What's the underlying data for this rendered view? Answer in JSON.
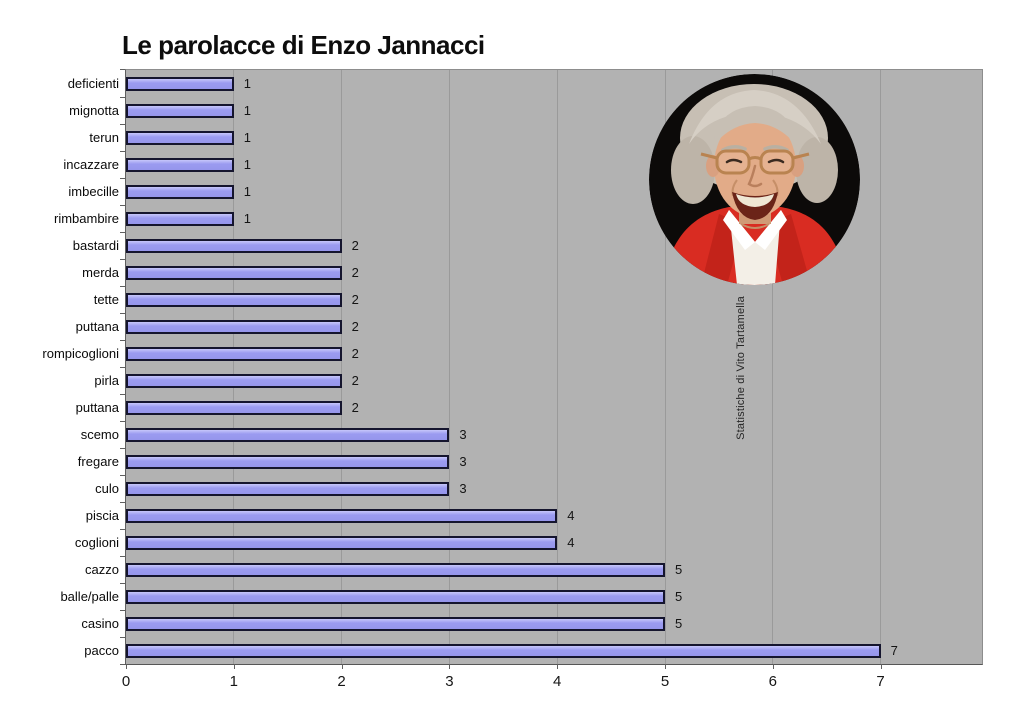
{
  "title": "Le parolacce di Enzo Jannacci",
  "watermark": "Statistiche di Vito Tartamella",
  "photo": {
    "alt": "enzo-jannacci-portrait",
    "background": "#0c0a09",
    "hair": "#c7bfb4",
    "skin": "#e2ab88",
    "jacket": "#d92c22",
    "shirt": "#f3efe7"
  },
  "colors": {
    "plot_background": "#b2b2b2",
    "gridline": "#9a9a9a",
    "bar_fill": "#9b9bf0",
    "bar_border": "#15152e",
    "axis": "#5f5f5f"
  },
  "chart_data": {
    "type": "bar",
    "orientation": "horizontal",
    "title": "Le parolacce di Enzo Jannacci",
    "xlabel": "",
    "ylabel": "",
    "grid": true,
    "legend": false,
    "xlim": [
      0,
      8
    ],
    "x_ticks": [
      0,
      1,
      2,
      3,
      4,
      5,
      6,
      7
    ],
    "value_labels_shown": true,
    "categories": [
      "deficienti",
      "mignotta",
      "terun",
      "incazzare",
      "imbecille",
      "rimbambire",
      "bastardi",
      "merda",
      "tette",
      "puttana",
      "rompicoglioni",
      "pirla",
      "puttana",
      "scemo",
      "fregare",
      "culo",
      "piscia",
      "coglioni",
      "cazzo",
      "balle/palle",
      "casino",
      "pacco"
    ],
    "values": [
      1,
      1,
      1,
      1,
      1,
      1,
      2,
      2,
      2,
      2,
      2,
      2,
      2,
      3,
      3,
      3,
      4,
      4,
      5,
      5,
      5,
      7
    ]
  }
}
